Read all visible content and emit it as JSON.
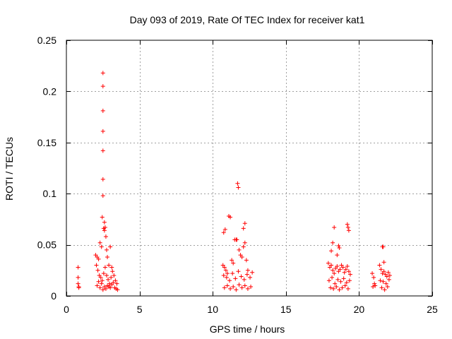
{
  "chart_data": {
    "type": "scatter",
    "title": "Day 093 of 2019, Rate Of TEC Index for receiver kat1",
    "xlabel": "GPS time / hours",
    "ylabel": "ROTI / TECUs",
    "xlim": [
      0,
      25
    ],
    "ylim": [
      0,
      0.25
    ],
    "xticks": [
      0,
      5,
      10,
      15,
      20,
      25
    ],
    "xtick_labels": [
      "0",
      "5",
      "10",
      "15",
      "20",
      "25"
    ],
    "yticks": [
      0,
      0.05,
      0.1,
      0.15,
      0.2,
      0.25
    ],
    "ytick_labels": [
      "0",
      "0.05",
      "0.1",
      "0.15",
      "0.2",
      "0.25"
    ],
    "grid": true,
    "marker": "+",
    "color": "#ff0000",
    "series": [
      {
        "name": "ROTI",
        "x": [
          0.8,
          0.8,
          0.8,
          0.85,
          0.85,
          2.0,
          2.1,
          2.2,
          2.3,
          2.4,
          2.45,
          2.5,
          2.5,
          2.5,
          2.5,
          2.5,
          2.5,
          2.5,
          2.55,
          2.6,
          2.6,
          2.65,
          2.7,
          2.75,
          2.8,
          2.9,
          3.0,
          3.1,
          2.05,
          2.15,
          2.25,
          2.35,
          2.45,
          2.55,
          2.65,
          2.75,
          2.85,
          2.95,
          3.05,
          3.15,
          3.25,
          3.35,
          3.45,
          2.1,
          2.3,
          2.5,
          2.7,
          2.9,
          3.1,
          3.3,
          3.5,
          2.2,
          2.4,
          2.6,
          2.8,
          3.0,
          3.2,
          3.4,
          10.7,
          10.8,
          10.9,
          11.0,
          10.75,
          10.85,
          11.1,
          11.2,
          11.3,
          11.4,
          11.5,
          11.6,
          11.65,
          11.7,
          11.75,
          11.8,
          11.9,
          12.0,
          12.1,
          12.2,
          12.3,
          12.4,
          12.1,
          12.2,
          10.75,
          10.95,
          11.15,
          11.35,
          11.55,
          11.75,
          11.95,
          12.15,
          12.35,
          12.55,
          12.7,
          10.8,
          11.0,
          11.2,
          11.4,
          11.6,
          11.8,
          12.0,
          12.2,
          12.4,
          12.6,
          17.9,
          18.0,
          18.1,
          18.2,
          18.3,
          18.4,
          18.5,
          18.6,
          18.7,
          18.8,
          18.9,
          19.0,
          19.1,
          19.2,
          19.3,
          19.4,
          17.95,
          18.15,
          18.35,
          18.55,
          18.75,
          18.95,
          19.15,
          19.35,
          18.05,
          18.25,
          18.45,
          18.65,
          18.85,
          19.05,
          19.25,
          18.3,
          18.2,
          18.6,
          18.65,
          19.2,
          19.25,
          19.3,
          18.1,
          18.5,
          20.9,
          21.0,
          21.05,
          21.1,
          20.95,
          21.4,
          21.5,
          21.6,
          21.7,
          21.8,
          21.9,
          22.0,
          22.1,
          21.45,
          21.65,
          21.85,
          22.05,
          21.55,
          21.75,
          21.95,
          21.6,
          21.65,
          21.7
        ],
        "y": [
          0.028,
          0.018,
          0.012,
          0.009,
          0.008,
          0.04,
          0.038,
          0.036,
          0.052,
          0.048,
          0.077,
          0.218,
          0.205,
          0.181,
          0.161,
          0.142,
          0.114,
          0.098,
          0.066,
          0.072,
          0.064,
          0.067,
          0.058,
          0.045,
          0.038,
          0.03,
          0.048,
          0.028,
          0.03,
          0.025,
          0.02,
          0.018,
          0.015,
          0.022,
          0.028,
          0.02,
          0.016,
          0.012,
          0.018,
          0.024,
          0.02,
          0.015,
          0.012,
          0.01,
          0.008,
          0.006,
          0.007,
          0.009,
          0.011,
          0.008,
          0.006,
          0.014,
          0.012,
          0.009,
          0.01,
          0.008,
          0.013,
          0.007,
          0.03,
          0.028,
          0.025,
          0.022,
          0.062,
          0.065,
          0.078,
          0.077,
          0.035,
          0.032,
          0.055,
          0.055,
          0.055,
          0.11,
          0.106,
          0.045,
          0.04,
          0.038,
          0.048,
          0.052,
          0.035,
          0.025,
          0.066,
          0.071,
          0.02,
          0.018,
          0.015,
          0.022,
          0.017,
          0.024,
          0.019,
          0.016,
          0.021,
          0.018,
          0.023,
          0.008,
          0.01,
          0.007,
          0.009,
          0.006,
          0.011,
          0.008,
          0.01,
          0.007,
          0.009,
          0.032,
          0.028,
          0.03,
          0.025,
          0.022,
          0.027,
          0.029,
          0.024,
          0.026,
          0.03,
          0.028,
          0.023,
          0.026,
          0.029,
          0.024,
          0.021,
          0.015,
          0.018,
          0.012,
          0.016,
          0.014,
          0.017,
          0.013,
          0.015,
          0.008,
          0.007,
          0.009,
          0.006,
          0.008,
          0.01,
          0.007,
          0.067,
          0.052,
          0.049,
          0.047,
          0.07,
          0.067,
          0.064,
          0.044,
          0.04,
          0.022,
          0.018,
          0.012,
          0.01,
          0.009,
          0.03,
          0.026,
          0.022,
          0.024,
          0.021,
          0.019,
          0.023,
          0.02,
          0.015,
          0.014,
          0.012,
          0.016,
          0.008,
          0.006,
          0.009,
          0.048,
          0.048,
          0.033
        ]
      }
    ]
  }
}
